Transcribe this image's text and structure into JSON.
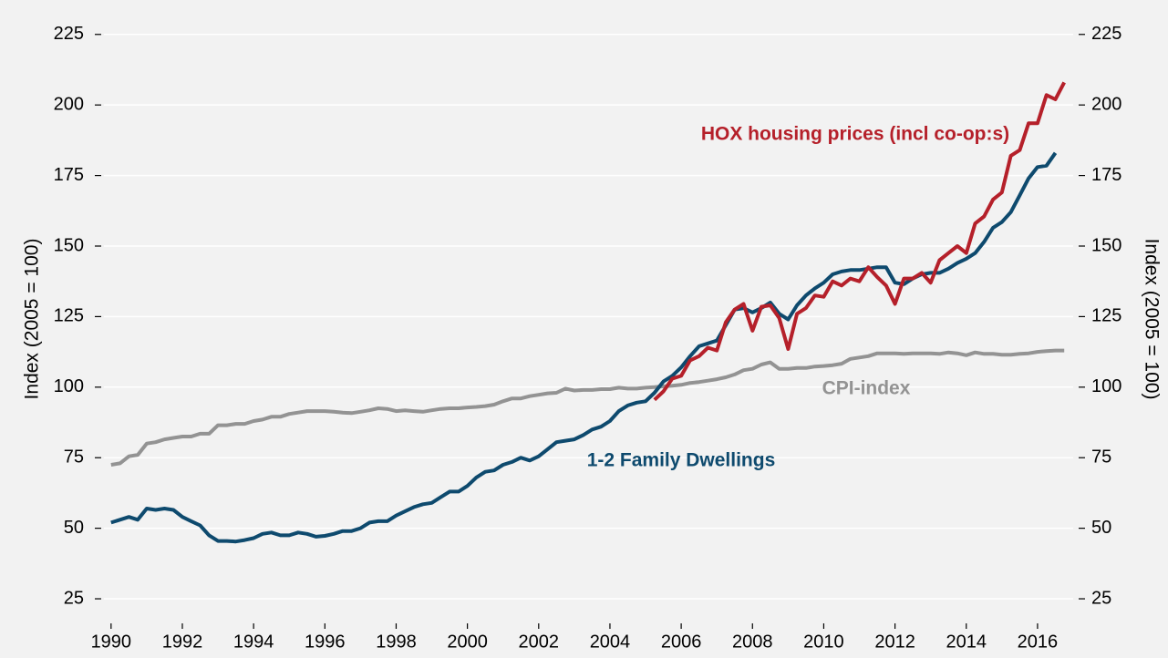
{
  "chart_data": {
    "type": "line",
    "ylabel": "Index (2005 = 100)",
    "y2label": "Index (2005 = 100)",
    "x": [
      1990,
      1990.25,
      1990.5,
      1990.75,
      1991,
      1991.25,
      1991.5,
      1991.75,
      1992,
      1992.25,
      1992.5,
      1992.75,
      1993,
      1993.25,
      1993.5,
      1993.75,
      1994,
      1994.25,
      1994.5,
      1994.75,
      1995,
      1995.25,
      1995.5,
      1995.75,
      1996,
      1996.25,
      1996.5,
      1996.75,
      1997,
      1997.25,
      1997.5,
      1997.75,
      1998,
      1998.25,
      1998.5,
      1998.75,
      1999,
      1999.25,
      1999.5,
      1999.75,
      2000,
      2000.25,
      2000.5,
      2000.75,
      2001,
      2001.25,
      2001.5,
      2001.75,
      2002,
      2002.25,
      2002.5,
      2002.75,
      2003,
      2003.25,
      2003.5,
      2003.75,
      2004,
      2004.25,
      2004.5,
      2004.75,
      2005,
      2005.25,
      2005.5,
      2005.75,
      2006,
      2006.25,
      2006.5,
      2006.75,
      2007,
      2007.25,
      2007.5,
      2007.75,
      2008,
      2008.25,
      2008.5,
      2008.75,
      2009,
      2009.25,
      2009.5,
      2009.75,
      2010,
      2010.25,
      2010.5,
      2010.75,
      2011,
      2011.25,
      2011.5,
      2011.75,
      2012,
      2012.25,
      2012.5,
      2012.75,
      2013,
      2013.25,
      2013.5,
      2013.75,
      2014,
      2014.25,
      2014.5,
      2014.75,
      2015,
      2015.25,
      2015.5,
      2015.75,
      2016,
      2016.25,
      2016.5,
      2016.75
    ],
    "series": [
      {
        "name": "CPI-index",
        "color": "#939393",
        "values": [
          72.5,
          73,
          75.5,
          76,
          80,
          80.5,
          81.5,
          82,
          82.5,
          82.5,
          83.5,
          83.5,
          86.5,
          86.5,
          87,
          87,
          88,
          88.5,
          89.5,
          89.5,
          90.5,
          91,
          91.5,
          91.5,
          91.5,
          91.3,
          91,
          90.8,
          91.3,
          91.8,
          92.5,
          92.3,
          91.5,
          91.8,
          91.5,
          91.3,
          91.8,
          92.3,
          92.5,
          92.5,
          92.8,
          93,
          93.3,
          93.8,
          95,
          96,
          96,
          96.8,
          97.3,
          97.8,
          98,
          99.5,
          98.8,
          99,
          99,
          99.3,
          99.3,
          99.8,
          99.5,
          99.5,
          99.8,
          100,
          100.3,
          100.5,
          100.8,
          101.5,
          101.8,
          102.3,
          102.8,
          103.5,
          104.5,
          106,
          106.5,
          108,
          108.8,
          106.5,
          106.5,
          106.8,
          106.8,
          107.3,
          107.5,
          107.8,
          108.3,
          110,
          110.5,
          111,
          112,
          112,
          112,
          111.8,
          112,
          112,
          112,
          111.8,
          112.3,
          112,
          111.3,
          112.3,
          111.8,
          111.8,
          111.5,
          111.5,
          111.8,
          112,
          112.5,
          112.8,
          113,
          113
        ]
      },
      {
        "name": "1-2 Family Dwellings",
        "color": "#0e4a6e",
        "values": [
          52,
          53,
          54,
          53,
          57,
          56.5,
          57,
          56.5,
          54,
          52.5,
          51,
          47.5,
          45.5,
          45.5,
          45.3,
          45.8,
          46.5,
          48,
          48.5,
          47.5,
          47.5,
          48.5,
          48,
          47,
          47.3,
          48,
          49,
          49,
          50,
          52,
          52.5,
          52.5,
          54.5,
          56,
          57.5,
          58.5,
          59,
          61,
          63,
          63,
          65,
          68,
          70,
          70.5,
          72.5,
          73.5,
          75,
          74,
          75.5,
          78,
          80.5,
          81,
          81.5,
          83,
          85,
          86,
          88,
          91.5,
          93.5,
          94.5,
          95,
          98,
          102,
          104,
          107,
          111,
          114.5,
          115.5,
          116.5,
          122,
          127.5,
          128,
          126.5,
          128,
          130,
          126,
          124,
          129,
          132.5,
          135,
          137,
          140,
          141,
          141.5,
          141.5,
          142,
          142.5,
          142.5,
          137,
          136.5,
          138.5,
          140,
          140.5,
          140.5,
          142,
          144,
          145.5,
          147.5,
          151.5,
          156.5,
          158.5,
          162,
          168,
          174,
          178,
          178.5,
          183,
          null
        ]
      },
      {
        "name": "HOX housing prices (incl co-op:s)",
        "color": "#b5202a",
        "values": [
          null,
          null,
          null,
          null,
          null,
          null,
          null,
          null,
          null,
          null,
          null,
          null,
          null,
          null,
          null,
          null,
          null,
          null,
          null,
          null,
          null,
          null,
          null,
          null,
          null,
          null,
          null,
          null,
          null,
          null,
          null,
          null,
          null,
          null,
          null,
          null,
          null,
          null,
          null,
          null,
          null,
          null,
          null,
          null,
          null,
          null,
          null,
          null,
          null,
          null,
          null,
          null,
          null,
          null,
          null,
          null,
          null,
          null,
          null,
          null,
          null,
          95.5,
          98.5,
          103,
          104,
          109.5,
          111,
          114,
          113,
          123,
          127.5,
          129.5,
          120,
          128.5,
          129,
          124.5,
          113.5,
          126,
          128,
          132.5,
          132,
          137.5,
          136,
          138.5,
          137.5,
          142.5,
          139,
          136,
          129.5,
          138.5,
          138.5,
          140.5,
          137,
          145,
          147.5,
          150,
          147.5,
          158,
          160.5,
          166.5,
          169,
          182,
          184,
          193.5,
          193.5,
          203.5,
          202,
          208
        ]
      }
    ],
    "xlim": [
      1989.8,
      2017.0
    ],
    "xticks": [
      1990,
      1992,
      1994,
      1996,
      1998,
      2000,
      2002,
      2004,
      2006,
      2008,
      2010,
      2012,
      2014,
      2016
    ],
    "ylim": [
      15,
      233
    ],
    "yticks": [
      25,
      50,
      75,
      100,
      125,
      150,
      175,
      200,
      225
    ],
    "y2lim": [
      15,
      233
    ],
    "y2ticks": [
      25,
      50,
      75,
      100,
      125,
      150,
      175,
      200,
      225
    ],
    "grid": true
  }
}
